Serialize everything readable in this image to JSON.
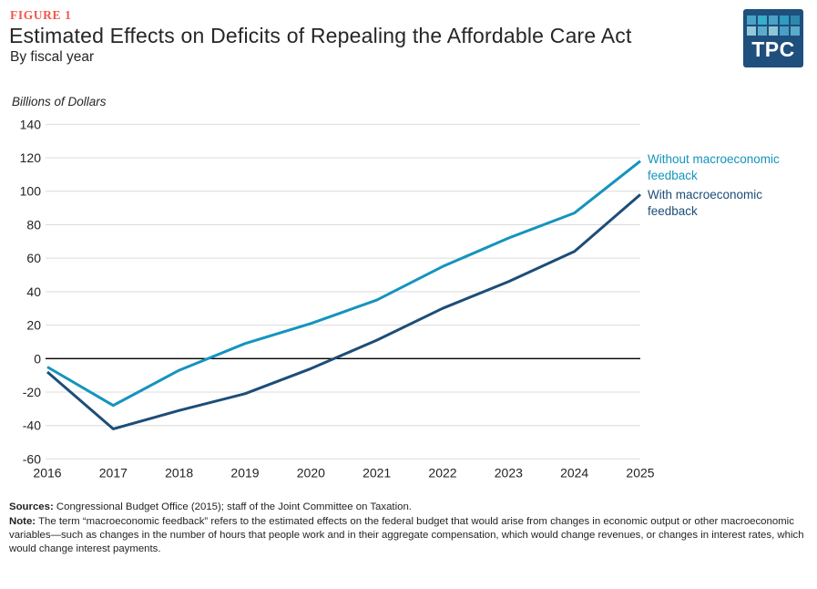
{
  "header": {
    "figure_label": "FIGURE 1",
    "title": "Estimated Effects on Deficits of Repealing the Affordable Care Act",
    "subtitle": "By fiscal year"
  },
  "logo": {
    "text": "TPC",
    "bg_color": "#1e4f7d",
    "square_colors": [
      [
        "#4aa2c6",
        "#38aec9",
        "#4aa2c6",
        "#2f9cc0",
        "#2c88ad"
      ],
      [
        "#93c8d9",
        "#5bacc9",
        "#8fc6d6",
        "#49a0c4",
        "#5bacc9"
      ]
    ]
  },
  "chart": {
    "unit_label": "Billions of Dollars"
  },
  "chart_data": {
    "type": "line",
    "title": "Estimated Effects on Deficits of Repealing the Affordable Care Act",
    "subtitle": "By fiscal year",
    "xlabel": "Fiscal year",
    "ylabel": "Billions of Dollars",
    "categories": [
      2016,
      2017,
      2018,
      2019,
      2020,
      2021,
      2022,
      2023,
      2024,
      2025
    ],
    "series": [
      {
        "name": "Without macroeconomic feedback",
        "color": "#1494bd",
        "values": [
          -5,
          -28,
          -7,
          9,
          21,
          35,
          55,
          72,
          87,
          118
        ]
      },
      {
        "name": "With macroeconomic feedback",
        "color": "#1d4d78",
        "values": [
          -8,
          -42,
          -31,
          -21,
          -6,
          11,
          30,
          46,
          64,
          98
        ]
      }
    ],
    "ylim": [
      -60,
      140
    ],
    "ytick_step": 20,
    "grid": true,
    "zero_line": true,
    "legend_position": "right of line ends",
    "grid_color": "#dcdcdc",
    "axis_text_color": "#231f20"
  },
  "footer": {
    "sources_label": "Sources:",
    "sources_text": "  Congressional Budget Office (2015); staff of the Joint Committee on Taxation.",
    "note_label": "Note:",
    "note_text": " The term “macroeconomic feedback” refers to the estimated effects on the federal budget that would arise from changes in economic output or other macroeconomic variables—such as changes in the number of hours that people work and in their aggregate compensation, which would change revenues, or changes in interest rates, which would change interest payments."
  }
}
